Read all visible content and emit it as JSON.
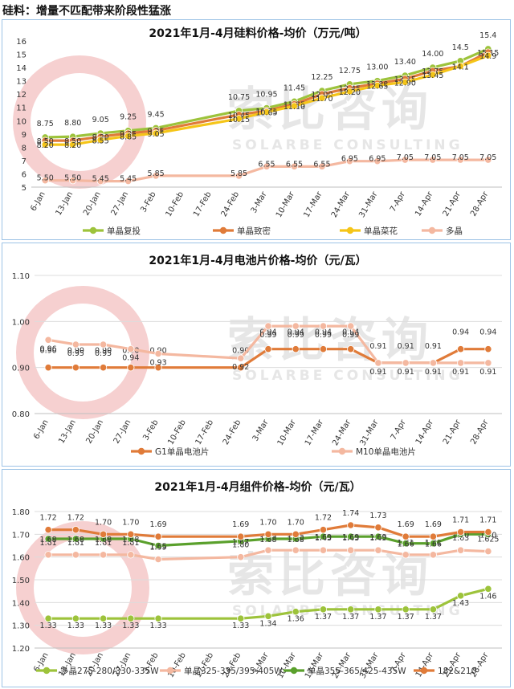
{
  "headline": "硅料：增量不匹配带来阶段性猛涨",
  "watermark": {
    "text": "索比咨询",
    "sub": "SOLARBE CONSULTING"
  },
  "chart_data": [
    {
      "type": "line",
      "title": "2021年1月-4月硅料价格-均价（万元/吨）",
      "categories": [
        "6-Jan",
        "13-Jan",
        "20-Jan",
        "27-Jan",
        "3-Feb",
        "10-Feb",
        "17-Feb",
        "24-Feb",
        "3-Mar",
        "10-Mar",
        "17-Mar",
        "24-Mar",
        "31-Mar",
        "7-Apr",
        "14-Apr",
        "21-Apr",
        "28-Apr"
      ],
      "ylim": [
        5,
        16
      ],
      "yticks": [
        5,
        6,
        7,
        8,
        9,
        10,
        11,
        12,
        13,
        14,
        15,
        16
      ],
      "grid": false,
      "legend": "bottom",
      "series": [
        {
          "name": "单晶复投",
          "color": "#9dc33b",
          "values": [
            8.75,
            8.8,
            9.05,
            9.25,
            9.45,
            null,
            null,
            10.75,
            10.95,
            11.45,
            12.25,
            12.75,
            13.0,
            13.4,
            14.0,
            14.5,
            15.4
          ],
          "labels": [
            "8.75",
            "8.80",
            "9.05",
            "9.25",
            "9.45",
            null,
            null,
            "10.75",
            "10.95",
            "11.45",
            "12.25",
            "12.75",
            "13.00",
            "13.40",
            "14.00",
            "14.5",
            "15.4"
          ]
        },
        {
          "name": "单晶致密",
          "color": "#e07b39",
          "values": [
            8.5,
            8.5,
            8.8,
            9.05,
            9.25,
            null,
            null,
            10.45,
            10.75,
            11.25,
            12.0,
            12.45,
            12.8,
            13.15,
            13.75,
            14.1,
            15.15
          ],
          "labels": [
            "8.50",
            "8.50",
            "8.80",
            "9.05",
            "9.25",
            null,
            null,
            "10.45",
            "10.75",
            "11.25",
            "12.00",
            "12.45",
            "12.80",
            "13.15",
            "13.75",
            "14.1",
            "15.15"
          ]
        },
        {
          "name": "单晶菜花",
          "color": "#f5c518",
          "values": [
            8.2,
            8.2,
            8.55,
            8.85,
            9.05,
            null,
            null,
            10.15,
            10.65,
            11.1,
            11.7,
            12.2,
            12.65,
            12.9,
            13.45,
            14.1,
            14.9
          ],
          "labels": [
            "8.20",
            "8.20",
            "8.55",
            "8.85",
            "9.05",
            null,
            null,
            "10.15",
            "10.65",
            "11.10",
            "11.70",
            "12.20",
            "12.65",
            "12.90",
            "13.45",
            "14.1",
            "14.9"
          ]
        },
        {
          "name": "多晶",
          "color": "#f4b8a0",
          "values": [
            5.5,
            5.5,
            5.45,
            5.45,
            5.85,
            null,
            null,
            5.85,
            6.55,
            6.55,
            6.55,
            6.95,
            6.95,
            7.05,
            7.05,
            7.05,
            7.05
          ],
          "labels": [
            "5.50",
            "5.50",
            "5.45",
            "5.45",
            "5.85",
            null,
            null,
            "5.85",
            "6.55",
            "6.55",
            "6.55",
            "6.95",
            "6.95",
            "7.05",
            "7.05",
            "7.05",
            "7.05"
          ]
        }
      ]
    },
    {
      "type": "line",
      "title": "2021年1月-4月电池片价格-均价（元/瓦）",
      "categories": [
        "6-Jan",
        "13-Jan",
        "20-Jan",
        "27-Jan",
        "3-Feb",
        "10-Feb",
        "17-Feb",
        "24-Feb",
        "3-Mar",
        "10-Mar",
        "17-Mar",
        "24-Mar",
        "31-Mar",
        "7-Apr",
        "14-Apr",
        "21-Apr",
        "28-Apr"
      ],
      "ylim": [
        0.8,
        1.1
      ],
      "yticks": [
        0.8,
        0.9,
        1.0,
        1.1
      ],
      "ytick_labels": [
        "0.80",
        "0.90",
        "1.00",
        "1.10"
      ],
      "grid": true,
      "legend": "bottom",
      "series": [
        {
          "name": "G1单晶电池片",
          "color": "#e07b39",
          "values": [
            0.9,
            0.9,
            0.9,
            0.9,
            0.9,
            null,
            null,
            0.9,
            0.94,
            0.94,
            0.94,
            0.94,
            0.91,
            0.91,
            0.91,
            0.94,
            0.94
          ],
          "labels": [
            "0.90",
            "0.90",
            "0.90",
            "0.90",
            "0.90",
            null,
            null,
            "0.90",
            "0.94",
            "0.94",
            "0.94",
            "0.94",
            "0.91",
            "0.91",
            "0.91",
            "0.94",
            "0.94"
          ]
        },
        {
          "name": "M10单晶电池片",
          "color": "#f4b8a0",
          "values": [
            0.96,
            0.95,
            0.95,
            0.94,
            0.93,
            null,
            null,
            0.92,
            0.99,
            0.99,
            0.99,
            0.99,
            0.91,
            0.91,
            0.91,
            0.91,
            0.91
          ],
          "labels": [
            "0.96",
            "0.95",
            "0.95",
            "0.94",
            "0.93",
            null,
            null,
            "0.92",
            "0.99",
            "0.99",
            "0.99",
            "0.99",
            "0.91",
            "0.91",
            "0.91",
            "0.91",
            "0.91"
          ]
        }
      ]
    },
    {
      "type": "line",
      "title": "2021年1月-4月组件价格-均价（元/瓦）",
      "categories": [
        "6-Jan",
        "13-Jan",
        "20-Jan",
        "27-Jan",
        "3-Feb",
        "10-Feb",
        "17-Feb",
        "24-Feb",
        "3-Mar",
        "10-Mar",
        "17-Mar",
        "24-Mar",
        "31-Mar",
        "7-Apr",
        "14-Apr",
        "21-Apr",
        "28-Apr"
      ],
      "ylim": [
        1.2,
        1.8
      ],
      "yticks": [
        1.2,
        1.3,
        1.4,
        1.5,
        1.6,
        1.7,
        1.8
      ],
      "ytick_labels": [
        "1.20",
        "1.30",
        "1.40",
        "1.50",
        "1.60",
        "1.70",
        "1.80"
      ],
      "grid": true,
      "legend": "bottom",
      "series": [
        {
          "name": "多晶275-280/330-335W",
          "color": "#9dc33b",
          "values": [
            1.33,
            1.33,
            1.33,
            1.33,
            1.33,
            null,
            null,
            1.33,
            1.34,
            1.36,
            1.37,
            1.37,
            1.37,
            1.37,
            1.37,
            1.43,
            1.46
          ],
          "labels": [
            "1.33",
            "1.33",
            "1.33",
            "1.33",
            "1.33",
            null,
            null,
            "1.33",
            "1.34",
            "1.36",
            "1.37",
            "1.37",
            "1.37",
            "1.37",
            "1.37",
            "1.43",
            "1.46"
          ]
        },
        {
          "name": "单晶325-335/395-405W",
          "color": "#f4b8a0",
          "values": [
            1.61,
            1.61,
            1.61,
            1.61,
            1.59,
            null,
            null,
            1.6,
            1.63,
            1.63,
            1.63,
            1.63,
            1.63,
            1.61,
            1.61,
            1.63,
            1.625
          ],
          "labels": [
            "1.61",
            "1.61",
            "1.61",
            "1.61",
            "1.59",
            null,
            null,
            "1.60",
            "1.63",
            "1.63",
            "1.63",
            "1.63",
            "1.63",
            "1.61",
            "1.61",
            "1.63",
            "1.625"
          ]
        },
        {
          "name": "单晶355-365/425-435W",
          "color": "#5aa02c",
          "values": [
            1.68,
            1.68,
            1.68,
            1.68,
            1.65,
            null,
            null,
            1.67,
            1.68,
            1.68,
            1.69,
            1.69,
            1.69,
            1.66,
            1.66,
            1.7,
            1.7
          ],
          "labels": [
            "1.68",
            "1.68",
            "1.68",
            "1.68",
            "1.65",
            null,
            null,
            "1.67",
            "1.68",
            "1.68",
            "1.69",
            "1.69",
            "1.69",
            "1.66",
            "1.66",
            "1.70",
            "1.70"
          ]
        },
        {
          "name": "182&210",
          "color": "#e07b39",
          "values": [
            1.72,
            1.72,
            1.7,
            1.7,
            1.69,
            null,
            null,
            1.69,
            1.7,
            1.7,
            1.72,
            1.74,
            1.73,
            1.69,
            1.69,
            1.71,
            1.71
          ],
          "labels": [
            "1.72",
            "1.72",
            "1.70",
            "1.70",
            "1.69",
            null,
            null,
            "1.69",
            "1.70",
            "1.70",
            "1.72",
            "1.74",
            "1.73",
            "1.69",
            "1.69",
            "1.71",
            "1.71"
          ]
        }
      ]
    }
  ]
}
